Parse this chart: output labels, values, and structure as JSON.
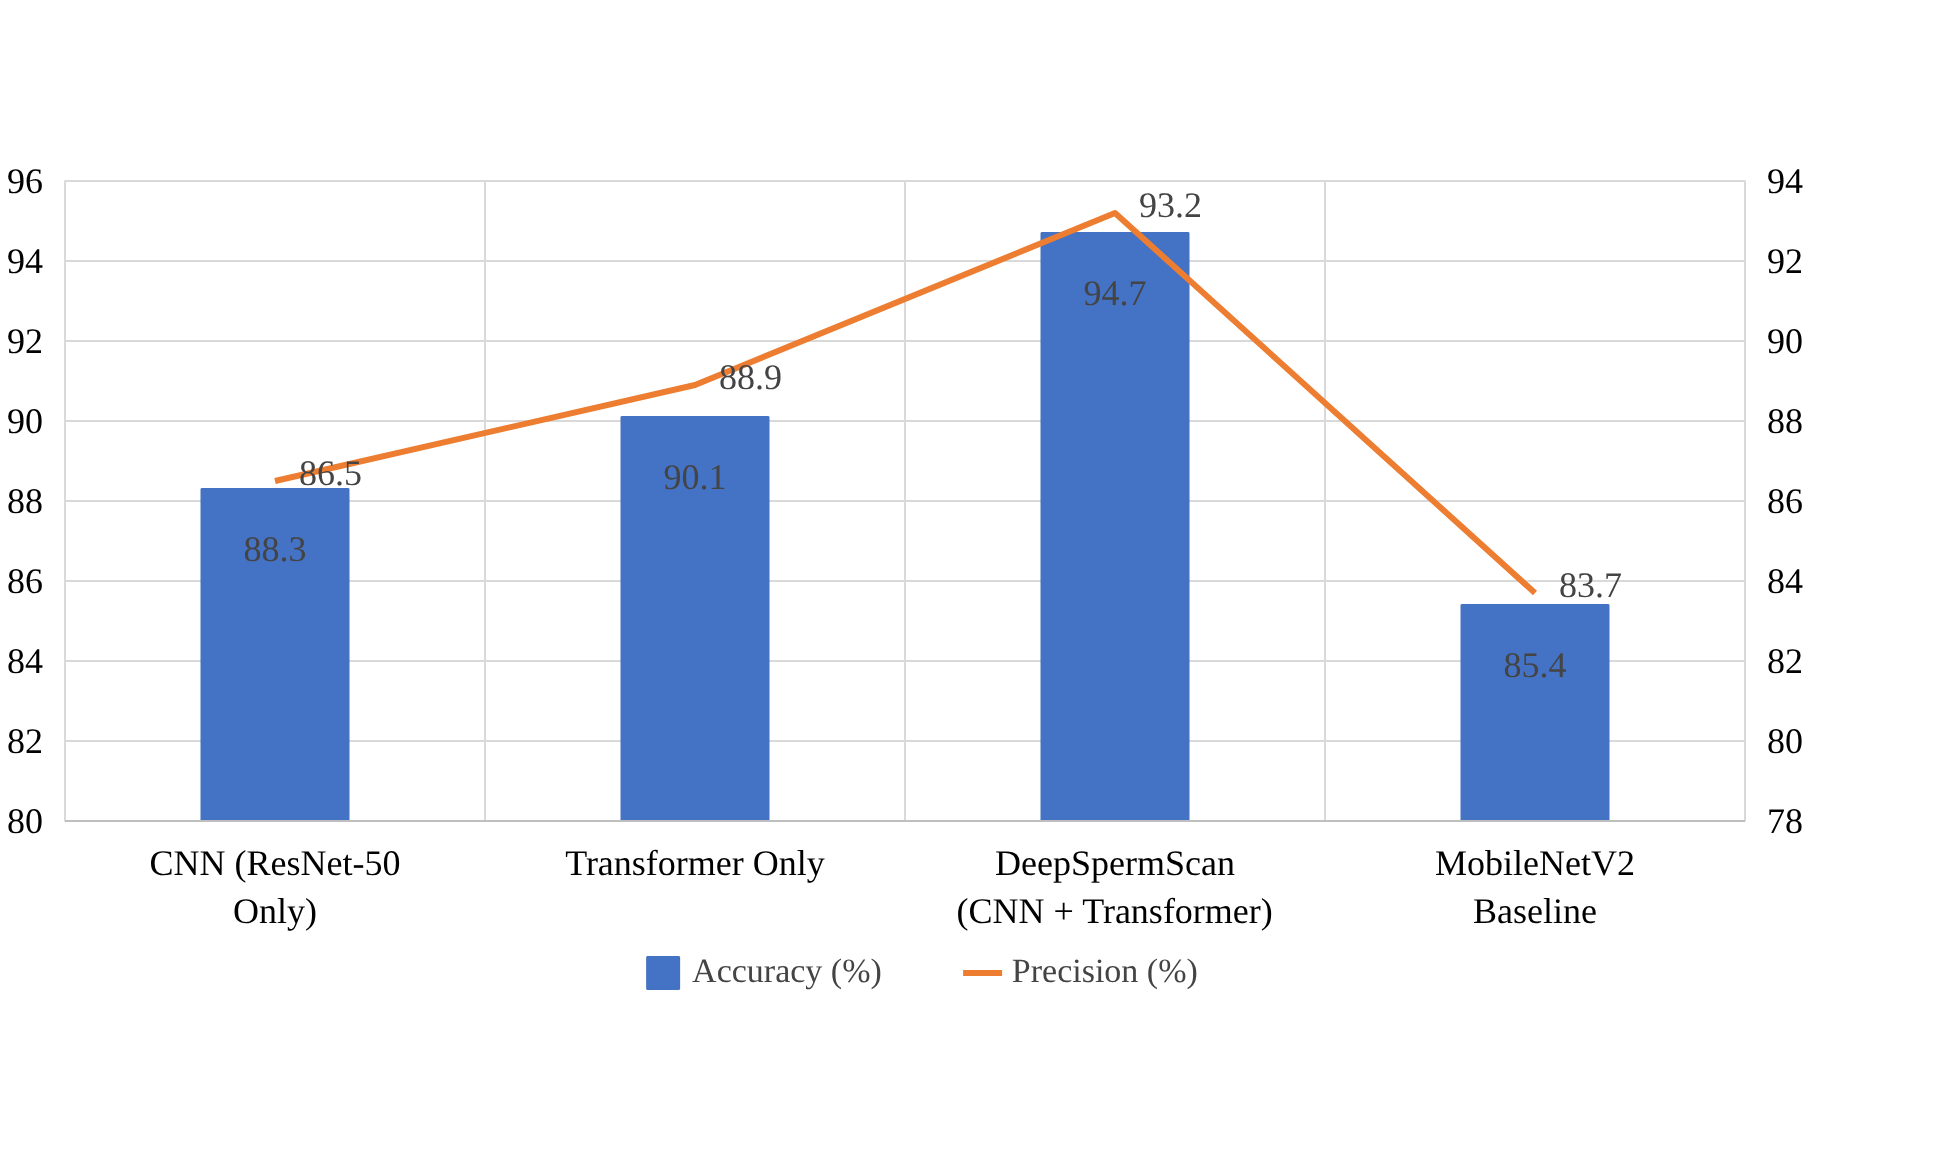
{
  "chart_data": {
    "type": "bar",
    "categories": [
      "CNN (ResNet-50\nOnly)",
      "Transformer Only",
      "DeepSpermScan\n(CNN + Transformer)",
      "MobileNetV2\nBaseline"
    ],
    "series": [
      {
        "name": "Accuracy (%)",
        "color": "#4472c4",
        "values": [
          88.3,
          90.1,
          94.7,
          85.4
        ]
      },
      {
        "name": "Precision (%)",
        "type": "line",
        "axis": "y2",
        "color": "#ed7d31",
        "values": [
          86.5,
          88.9,
          93.2,
          83.7
        ]
      }
    ],
    "ylim": [
      80,
      96
    ],
    "yticks": [
      80,
      82,
      84,
      86,
      88,
      90,
      92,
      94,
      96
    ],
    "y2lim": [
      78,
      94
    ],
    "y2ticks": [
      78,
      80,
      82,
      84,
      86,
      88,
      90,
      92,
      94
    ],
    "data_labels": true,
    "grid": true,
    "legend": "bottom",
    "marker": "none",
    "line_style": "solid"
  }
}
